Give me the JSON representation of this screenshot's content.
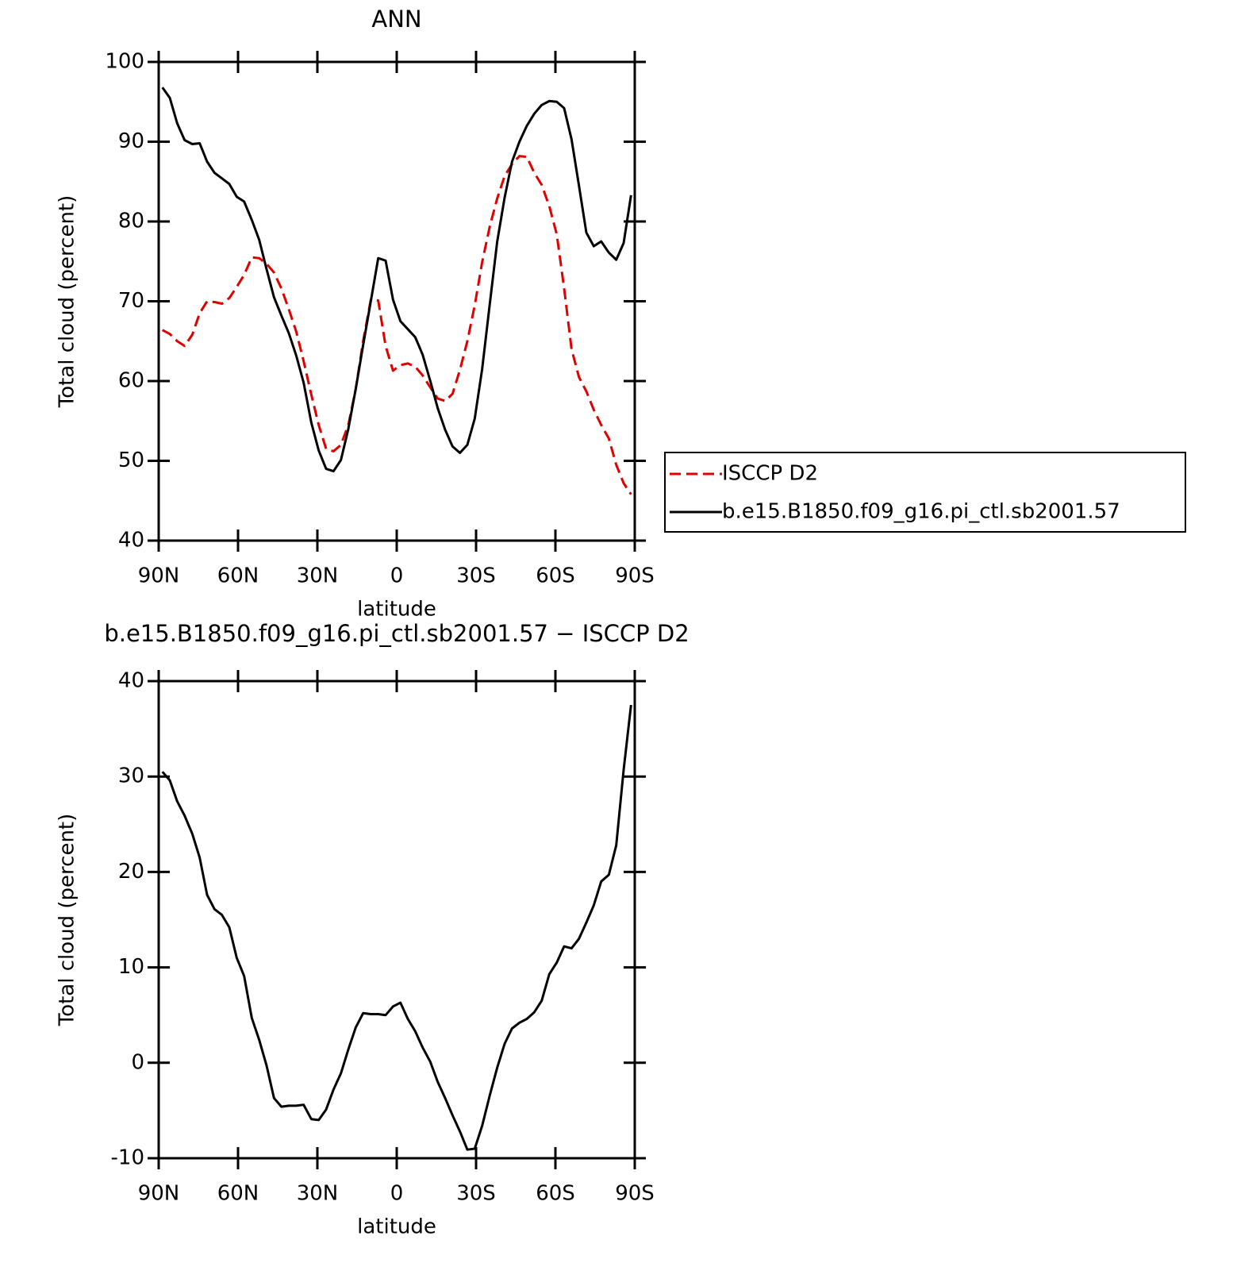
{
  "chart_data": [
    {
      "type": "line",
      "title": "ANN",
      "x_label": "latitude",
      "y_label": "Total cloud (percent)",
      "x": [
        88.6,
        85.8,
        83.0,
        80.2,
        77.3,
        74.5,
        71.7,
        68.9,
        66.1,
        63.3,
        60.5,
        57.7,
        54.8,
        52.0,
        49.2,
        46.4,
        43.6,
        40.8,
        38.0,
        35.2,
        32.3,
        29.5,
        26.7,
        23.9,
        21.1,
        18.3,
        15.5,
        12.7,
        9.8,
        7.0,
        4.2,
        1.4,
        -1.4,
        -4.2,
        -7.0,
        -9.8,
        -12.7,
        -15.5,
        -18.3,
        -21.1,
        -23.9,
        -26.7,
        -29.5,
        -32.3,
        -35.2,
        -38.0,
        -40.8,
        -43.6,
        -46.4,
        -49.2,
        -52.0,
        -54.8,
        -57.7,
        -60.5,
        -63.3,
        -66.1,
        -68.9,
        -71.7,
        -74.5,
        -77.3,
        -80.2,
        -83.0,
        -85.8,
        -88.6
      ],
      "series": [
        {
          "name": "ISCCP D2",
          "color": "#e00000",
          "dashed": true,
          "values": [
            66.4,
            65.9,
            65.0,
            64.4,
            65.8,
            68.5,
            70.0,
            69.9,
            69.7,
            70.4,
            71.8,
            73.3,
            75.5,
            75.4,
            74.7,
            73.6,
            71.6,
            69.0,
            66.2,
            62.5,
            58.3,
            54.5,
            51.5,
            51.2,
            52.0,
            54.5,
            59.0,
            65.0,
            70.2,
            70.1,
            64.4,
            61.3,
            62.0,
            62.2,
            61.8,
            60.7,
            59.2,
            57.8,
            57.5,
            58.4,
            61.4,
            65.0,
            69.5,
            74.9,
            79.4,
            82.9,
            85.7,
            87.2,
            88.2,
            88.1,
            86.1,
            84.6,
            81.9,
            78.4,
            71.6,
            64.0,
            60.5,
            58.7,
            56.4,
            54.5,
            52.8,
            49.5,
            47.2,
            45.8
          ]
        },
        {
          "name": "b.e15.B1850.f09_g16.pi_ctl.sb2001.57",
          "color": "#000000",
          "dashed": false,
          "values": [
            96.8,
            95.5,
            92.3,
            90.2,
            89.7,
            89.8,
            87.5,
            86.1,
            85.4,
            84.7,
            83.1,
            82.5,
            80.2,
            77.7,
            74.0,
            70.5,
            68.2,
            66.0,
            63.2,
            59.8,
            54.8,
            51.3,
            49.0,
            48.7,
            50.1,
            54.0,
            59.0,
            64.5,
            70.0,
            75.4,
            75.1,
            70.2,
            67.5,
            66.5,
            65.5,
            63.3,
            60.0,
            56.6,
            53.9,
            51.8,
            51.0,
            52.0,
            55.3,
            61.5,
            69.7,
            77.5,
            83.0,
            87.5,
            90.0,
            92.0,
            93.5,
            94.6,
            95.1,
            95.0,
            94.2,
            90.3,
            84.5,
            78.6,
            76.9,
            77.5,
            76.1,
            75.2,
            77.3,
            83.3
          ]
        }
      ],
      "xlim": [
        90,
        -90
      ],
      "xticks": [
        {
          "value": 90,
          "label": "90N"
        },
        {
          "value": 60,
          "label": "60N"
        },
        {
          "value": 30,
          "label": "30N"
        },
        0,
        {
          "value": -30,
          "label": "30S"
        },
        {
          "value": -60,
          "label": "60S"
        },
        {
          "value": -90,
          "label": "90S"
        }
      ],
      "ylim": [
        40,
        100
      ],
      "yticks": [
        40,
        50,
        60,
        70,
        80,
        90,
        100
      ],
      "legend": "right"
    },
    {
      "type": "line",
      "title": "b.e15.B1850.f09_g16.pi_ctl.sb2001.57 − ISCCP D2",
      "x_label": "latitude",
      "y_label": "Total cloud (percent)",
      "x": [
        88.6,
        85.8,
        83.0,
        80.2,
        77.3,
        74.5,
        71.7,
        68.9,
        66.1,
        63.3,
        60.5,
        57.7,
        54.8,
        52.0,
        49.2,
        46.4,
        43.6,
        40.8,
        38.0,
        35.2,
        32.3,
        29.5,
        26.7,
        23.9,
        21.1,
        18.3,
        15.5,
        12.7,
        9.8,
        7.0,
        4.2,
        1.4,
        -1.4,
        -4.2,
        -7.0,
        -9.8,
        -12.7,
        -15.5,
        -18.3,
        -21.1,
        -23.9,
        -26.7,
        -29.5,
        -32.3,
        -35.2,
        -38.0,
        -40.8,
        -43.6,
        -46.4,
        -49.2,
        -52.0,
        -54.8,
        -57.7,
        -60.5,
        -63.3,
        -66.1,
        -68.9,
        -71.7,
        -74.5,
        -77.3,
        -80.2,
        -83.0,
        -85.8,
        -88.6
      ],
      "color": "#000000",
      "values": [
        30.5,
        29.6,
        27.4,
        25.9,
        24.0,
        21.5,
        17.6,
        16.1,
        15.5,
        14.2,
        11.0,
        9.1,
        4.7,
        2.4,
        -0.3,
        -3.7,
        -4.6,
        -4.5,
        -4.5,
        -4.4,
        -5.9,
        -6.0,
        -4.9,
        -2.8,
        -1.1,
        1.4,
        3.7,
        5.2,
        5.1,
        5.1,
        5.0,
        5.9,
        6.3,
        4.6,
        3.3,
        1.6,
        0.1,
        -2.0,
        -3.7,
        -5.5,
        -7.2,
        -9.1,
        -9.0,
        -6.6,
        -3.4,
        -0.5,
        2.0,
        3.6,
        4.2,
        4.6,
        5.3,
        6.5,
        9.3,
        10.5,
        12.2,
        12.0,
        13.0,
        14.7,
        16.5,
        19.0,
        19.7,
        22.8,
        30.7,
        37.5
      ],
      "xlim": [
        90,
        -90
      ],
      "xticks": [
        {
          "value": 90,
          "label": "90N"
        },
        {
          "value": 60,
          "label": "60N"
        },
        {
          "value": 30,
          "label": "30N"
        },
        0,
        {
          "value": -30,
          "label": "30S"
        },
        {
          "value": -60,
          "label": "60S"
        },
        {
          "value": -90,
          "label": "90S"
        }
      ],
      "ylim": [
        -10,
        40
      ],
      "yticks": [
        -10,
        0,
        10,
        20,
        30,
        40
      ]
    }
  ]
}
